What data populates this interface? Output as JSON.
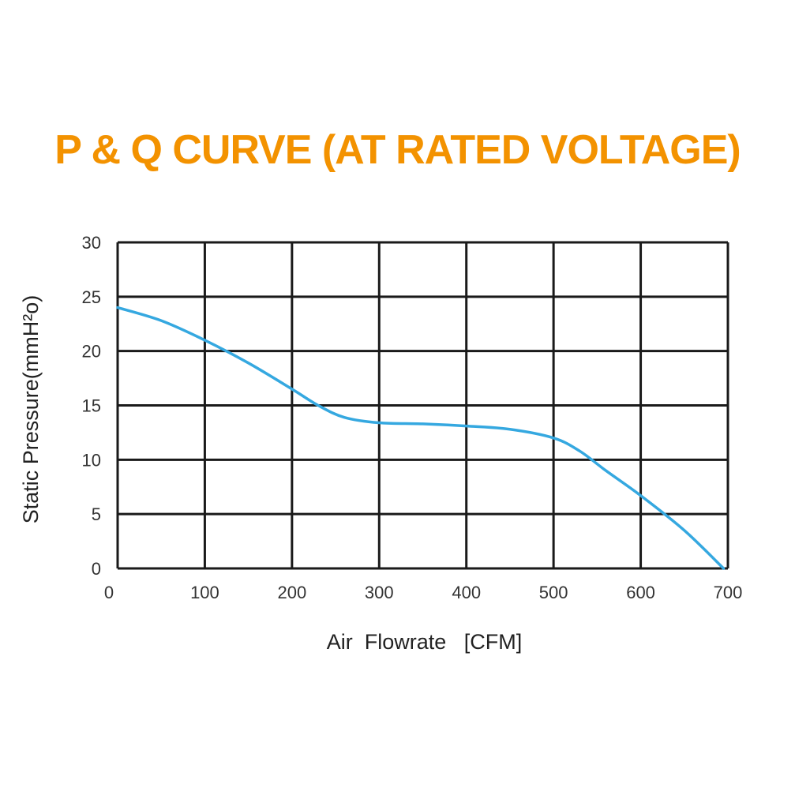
{
  "colors": {
    "title": "#F39200",
    "grid": "#1a1a1a",
    "curve": "#35A8E0",
    "text": "#222222"
  },
  "chart_data": {
    "type": "line",
    "title": "P & Q CURVE (AT RATED VOLTAGE)",
    "xlabel": "Air  Flowrate   [CFM]",
    "ylabel": "Static Pressure(mmH²o)",
    "xlim": [
      0,
      700
    ],
    "ylim": [
      0,
      30
    ],
    "x_ticks": [
      "0",
      "100",
      "200",
      "300",
      "400",
      "500",
      "600",
      "700"
    ],
    "y_ticks": [
      "0",
      "5",
      "10",
      "15",
      "20",
      "25",
      "30"
    ],
    "grid": true,
    "series": [
      {
        "x": [
          0,
          50,
          100,
          150,
          200,
          230,
          260,
          300,
          350,
          400,
          450,
          500,
          530,
          560,
          600,
          650,
          695
        ],
        "values": [
          24.0,
          22.8,
          21.0,
          18.9,
          16.5,
          15.0,
          13.9,
          13.4,
          13.3,
          13.1,
          12.8,
          12.0,
          10.8,
          9.0,
          6.7,
          3.5,
          0.0
        ]
      }
    ]
  }
}
